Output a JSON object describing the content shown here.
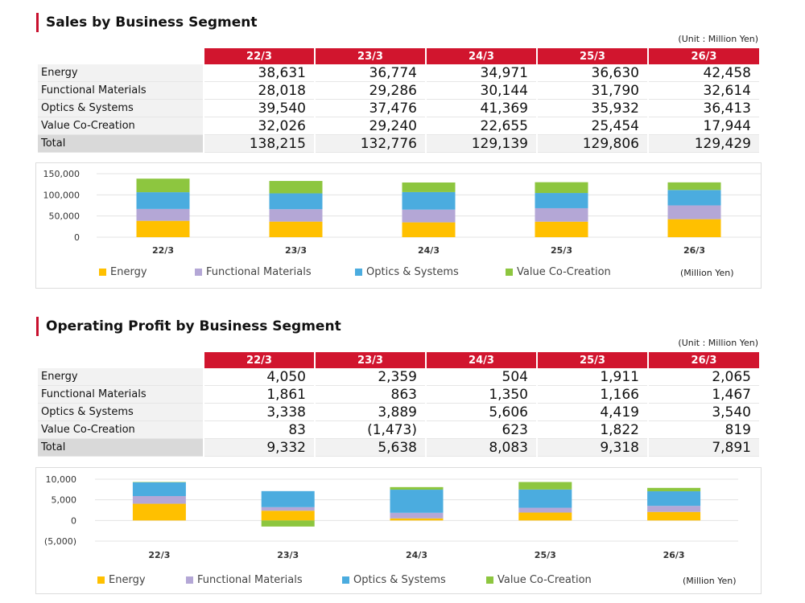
{
  "sales": {
    "title": "Sales by Business Segment",
    "unit": "(Unit : Million Yen)",
    "columns": [
      "22/3",
      "23/3",
      "24/3",
      "25/3",
      "26/3"
    ],
    "rows": [
      {
        "label": "Energy",
        "values": [
          "38,631",
          "36,774",
          "34,971",
          "36,630",
          "42,458"
        ]
      },
      {
        "label": "Functional Materials",
        "values": [
          "28,018",
          "29,286",
          "30,144",
          "31,790",
          "32,614"
        ]
      },
      {
        "label": "Optics & Systems",
        "values": [
          "39,540",
          "37,476",
          "41,369",
          "35,932",
          "36,413"
        ]
      },
      {
        "label": "Value Co-Creation",
        "values": [
          "32,026",
          "29,240",
          "22,655",
          "25,454",
          "17,944"
        ]
      }
    ],
    "total": {
      "label": "Total",
      "values": [
        "138,215",
        "132,776",
        "129,139",
        "129,806",
        "129,429"
      ]
    },
    "legend_unit": "(Million Yen)"
  },
  "profit": {
    "title": "Operating Profit by Business Segment",
    "unit": "(Unit : Million Yen)",
    "columns": [
      "22/3",
      "23/3",
      "24/3",
      "25/3",
      "26/3"
    ],
    "rows": [
      {
        "label": "Energy",
        "values": [
          "4,050",
          "2,359",
          "504",
          "1,911",
          "2,065"
        ]
      },
      {
        "label": "Functional Materials",
        "values": [
          "1,861",
          "863",
          "1,350",
          "1,166",
          "1,467"
        ]
      },
      {
        "label": "Optics & Systems",
        "values": [
          "3,338",
          "3,889",
          "5,606",
          "4,419",
          "3,540"
        ]
      },
      {
        "label": "Value Co-Creation",
        "values": [
          "83",
          "(1,473)",
          "623",
          "1,822",
          "819"
        ]
      }
    ],
    "total": {
      "label": "Total",
      "values": [
        "9,332",
        "5,638",
        "8,083",
        "9,318",
        "7,891"
      ]
    },
    "legend_unit": "(Million Yen)"
  },
  "colors": {
    "Energy": "#ffc000",
    "Functional Materials": "#b4a7d6",
    "Optics & Systems": "#4bacdf",
    "Value Co-Creation": "#8dc63f",
    "header": "#d1152e"
  },
  "chart_data": [
    {
      "type": "bar",
      "stacked": true,
      "categories": [
        "22/3",
        "23/3",
        "24/3",
        "25/3",
        "26/3"
      ],
      "series": [
        {
          "name": "Energy",
          "values": [
            38631,
            36774,
            34971,
            36630,
            42458
          ]
        },
        {
          "name": "Functional Materials",
          "values": [
            28018,
            29286,
            30144,
            31790,
            32614
          ]
        },
        {
          "name": "Optics & Systems",
          "values": [
            39540,
            37476,
            41369,
            35932,
            36413
          ]
        },
        {
          "name": "Value Co-Creation",
          "values": [
            32026,
            29240,
            22655,
            25454,
            17944
          ]
        }
      ],
      "ylim": [
        0,
        150000
      ],
      "yticks": [
        "150,000",
        "100,000",
        "50,000",
        "0"
      ],
      "ytick_values": [
        150000,
        100000,
        50000,
        0
      ],
      "grid": true,
      "legend": "bottom"
    },
    {
      "type": "bar",
      "stacked": true,
      "categories": [
        "22/3",
        "23/3",
        "24/3",
        "25/3",
        "26/3"
      ],
      "series": [
        {
          "name": "Energy",
          "values": [
            4050,
            2359,
            504,
            1911,
            2065
          ]
        },
        {
          "name": "Functional Materials",
          "values": [
            1861,
            863,
            1350,
            1166,
            1467
          ]
        },
        {
          "name": "Optics & Systems",
          "values": [
            3338,
            3889,
            5606,
            4419,
            3540
          ]
        },
        {
          "name": "Value Co-Creation",
          "values": [
            83,
            -1473,
            623,
            1822,
            819
          ]
        }
      ],
      "ylim": [
        -5000,
        10000
      ],
      "yticks": [
        "10,000",
        "5,000",
        "0",
        "(5,000)"
      ],
      "ytick_values": [
        10000,
        5000,
        0,
        -5000
      ],
      "grid": true,
      "legend": "bottom"
    }
  ]
}
